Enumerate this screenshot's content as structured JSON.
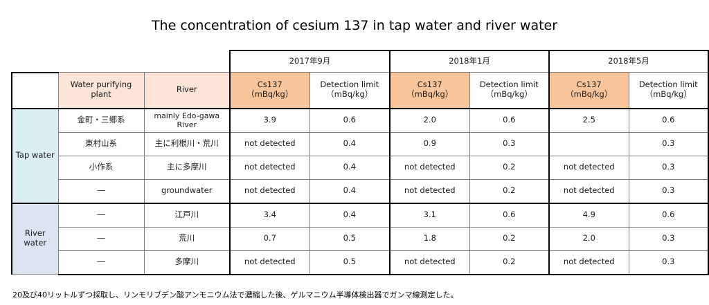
{
  "title": "The concentration of cesium 137 in tap water and river water",
  "periods": [
    "2017年9月",
    "2018年1月",
    "2018年5月"
  ],
  "headers": {
    "plant": "Water purifying plant",
    "river": "River",
    "cs_line1": "Cs137",
    "cs_line2": "（mBq/kg）",
    "dl_line1": "Detection limit",
    "dl_line2": "（mBq/kg）"
  },
  "categories": {
    "tap": "Tap water",
    "river_line1": "River",
    "river_line2": "water"
  },
  "rows": [
    {
      "plant": "金町・三郷系",
      "river_line1": "mainly Edo-gawa",
      "river_line2": "River",
      "v": [
        "3.9",
        "0.6",
        "2.0",
        "0.6",
        "2.5",
        "0.6"
      ]
    },
    {
      "plant": "東村山系",
      "river_line1": "主に利根川・荒川",
      "river_line2": "",
      "v": [
        "not detected",
        "0.4",
        "0.9",
        "0.3",
        "",
        "0.3"
      ]
    },
    {
      "plant": "小作系",
      "river_line1": "主に多摩川",
      "river_line2": "",
      "v": [
        "not detected",
        "0.4",
        "not detected",
        "0.2",
        "not detected",
        "0.3"
      ]
    },
    {
      "plant": "―",
      "river_line1": "groundwater",
      "river_line2": "",
      "v": [
        "not detected",
        "0.4",
        "not detected",
        "0.2",
        "not detected",
        "0.3"
      ]
    },
    {
      "plant": "―",
      "river_line1": "江戸川",
      "river_line2": "",
      "v": [
        "3.4",
        "0.4",
        "3.1",
        "0.6",
        "4.9",
        "0.6"
      ]
    },
    {
      "plant": "―",
      "river_line1": "荒川",
      "river_line2": "",
      "v": [
        "0.7",
        "0.5",
        "1.8",
        "0.2",
        "2.0",
        "0.3"
      ]
    },
    {
      "plant": "―",
      "river_line1": "多摩川",
      "river_line2": "",
      "v": [
        "not detected",
        "0.5",
        "not detected",
        "0.2",
        "not detected",
        "0.3"
      ]
    }
  ],
  "footnote": "20及び40リットルずつ採取し、リンモリブデン酸アンモニウム法で濃縮した後、ゲルマニウム半導体検出器でガンマ線測定した。"
}
